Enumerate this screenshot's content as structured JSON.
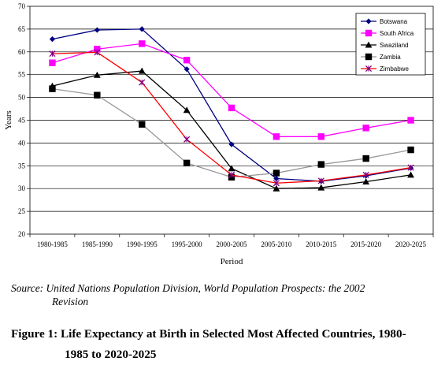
{
  "chart_data": {
    "type": "line",
    "categories": [
      "1980-1985",
      "1985-1990",
      "1990-1995",
      "1995-2000",
      "2000-2005",
      "2005-2010",
      "2010-2015",
      "2015-2020",
      "2020-2025"
    ],
    "series": [
      {
        "name": "Botswana",
        "color": "#000080",
        "marker": "diamond",
        "values": [
          62.8,
          64.8,
          65.0,
          56.2,
          39.7,
          32.2,
          31.6,
          32.8,
          34.5
        ]
      },
      {
        "name": "South Africa",
        "color": "#FF00FF",
        "marker": "square",
        "values": [
          57.6,
          60.6,
          61.8,
          58.2,
          47.7,
          41.4,
          41.4,
          43.3,
          45.0
        ]
      },
      {
        "name": "Swaziland",
        "color": "#000000",
        "marker": "triangle",
        "values": [
          52.5,
          54.9,
          55.8,
          47.2,
          34.4,
          30.0,
          30.2,
          31.5,
          33.0
        ]
      },
      {
        "name": "Zambia",
        "color": "#999999",
        "line_color": "#999999",
        "marker_color": "#000000",
        "marker": "square",
        "values": [
          51.9,
          50.5,
          44.1,
          35.6,
          32.5,
          33.4,
          35.3,
          36.6,
          38.5
        ]
      },
      {
        "name": "Zimbabwe",
        "color": "#FF0000",
        "line_color": "#FF0000",
        "marker_color": "#800080",
        "marker": "x",
        "values": [
          59.6,
          59.9,
          53.3,
          40.8,
          33.0,
          31.2,
          31.7,
          33.0,
          34.6
        ]
      }
    ],
    "title": "",
    "xlabel": "Period",
    "ylabel": "Years",
    "ylim": [
      20,
      70
    ],
    "yticks": [
      20,
      25,
      30,
      35,
      40,
      45,
      50,
      55,
      60,
      65,
      70
    ],
    "grid": true,
    "legend_position": "top-right"
  },
  "source_prefix": "Source:",
  "source_line1": "United Nations Population Division, World Population Prospects: the 2002",
  "source_line2": "Revision",
  "caption_line1": "Figure 1: Life Expectancy at Birth in Selected Most Affected Countries, 1980-",
  "caption_line2": "1985 to 2020-2025"
}
